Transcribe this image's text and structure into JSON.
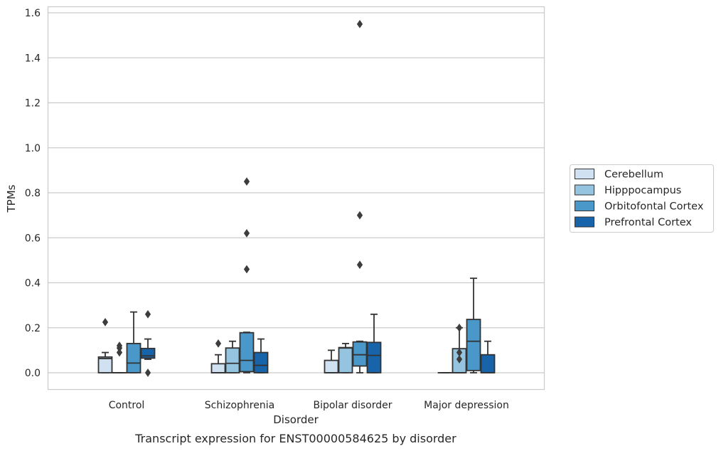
{
  "chart_data": {
    "type": "box",
    "xlabel": "Disorder",
    "ylabel": "TPMs",
    "caption": "Transcript expression for ENST00000584625 by disorder",
    "ylim": [
      -0.075,
      1.63
    ],
    "yticks": [
      "0.0",
      "0.2",
      "0.4",
      "0.6",
      "0.8",
      "1.0",
      "1.2",
      "1.4",
      "1.6"
    ],
    "grid": "horizontal",
    "legend_position": "right",
    "categories": [
      "Control",
      "Schizophrenia",
      "Bipolar disorder",
      "Major depression"
    ],
    "series": [
      {
        "name": "Cerebellum",
        "color": "#d0e1f2",
        "boxes": [
          {
            "q1": 0.0,
            "median": 0.063,
            "q3": 0.07,
            "whisker_low": 0.0,
            "whisker_high": 0.09,
            "outliers": [
              0.225
            ]
          },
          {
            "q1": 0.0,
            "median": 0.0,
            "q3": 0.04,
            "whisker_low": 0.0,
            "whisker_high": 0.08,
            "outliers": [
              0.13
            ]
          },
          {
            "q1": 0.0,
            "median": 0.0,
            "q3": 0.055,
            "whisker_low": 0.0,
            "whisker_high": 0.1,
            "outliers": []
          },
          {
            "q1": 0.0,
            "median": 0.0,
            "q3": 0.0,
            "whisker_low": 0.0,
            "whisker_high": 0.0,
            "outliers": []
          }
        ]
      },
      {
        "name": "Hipppocampus",
        "color": "#94c4df",
        "boxes": [
          {
            "q1": 0.0,
            "median": 0.0,
            "q3": 0.0,
            "whisker_low": 0.0,
            "whisker_high": 0.0,
            "outliers": [
              0.09,
              0.11,
              0.12
            ]
          },
          {
            "q1": 0.0,
            "median": 0.042,
            "q3": 0.11,
            "whisker_low": 0.0,
            "whisker_high": 0.14,
            "outliers": []
          },
          {
            "q1": 0.0,
            "median": 0.11,
            "q3": 0.112,
            "whisker_low": 0.0,
            "whisker_high": 0.13,
            "outliers": []
          },
          {
            "q1": 0.0,
            "median": 0.0,
            "q3": 0.107,
            "whisker_low": 0.0,
            "whisker_high": 0.2,
            "outliers": [
              0.06,
              0.09,
              0.2
            ]
          }
        ]
      },
      {
        "name": "Orbitofontal Cortex",
        "color": "#4a98c9",
        "boxes": [
          {
            "q1": 0.0,
            "median": 0.043,
            "q3": 0.13,
            "whisker_low": 0.0,
            "whisker_high": 0.27,
            "outliers": []
          },
          {
            "q1": 0.005,
            "median": 0.055,
            "q3": 0.178,
            "whisker_low": 0.0,
            "whisker_high": 0.18,
            "outliers": [
              0.46,
              0.62,
              0.85
            ]
          },
          {
            "q1": 0.03,
            "median": 0.08,
            "q3": 0.137,
            "whisker_low": 0.0,
            "whisker_high": 0.14,
            "outliers": [
              0.48,
              0.7,
              1.55
            ]
          },
          {
            "q1": 0.01,
            "median": 0.14,
            "q3": 0.237,
            "whisker_low": 0.0,
            "whisker_high": 0.42,
            "outliers": []
          }
        ]
      },
      {
        "name": "Prefrontal Cortex",
        "color": "#1764ab",
        "boxes": [
          {
            "q1": 0.065,
            "median": 0.075,
            "q3": 0.108,
            "whisker_low": 0.06,
            "whisker_high": 0.15,
            "outliers": [
              0.0,
              0.26
            ]
          },
          {
            "q1": 0.0,
            "median": 0.033,
            "q3": 0.09,
            "whisker_low": 0.0,
            "whisker_high": 0.15,
            "outliers": []
          },
          {
            "q1": 0.0,
            "median": 0.077,
            "q3": 0.135,
            "whisker_low": 0.0,
            "whisker_high": 0.26,
            "outliers": []
          },
          {
            "q1": 0.0,
            "median": 0.0,
            "q3": 0.08,
            "whisker_low": 0.0,
            "whisker_high": 0.14,
            "outliers": []
          }
        ]
      }
    ]
  }
}
